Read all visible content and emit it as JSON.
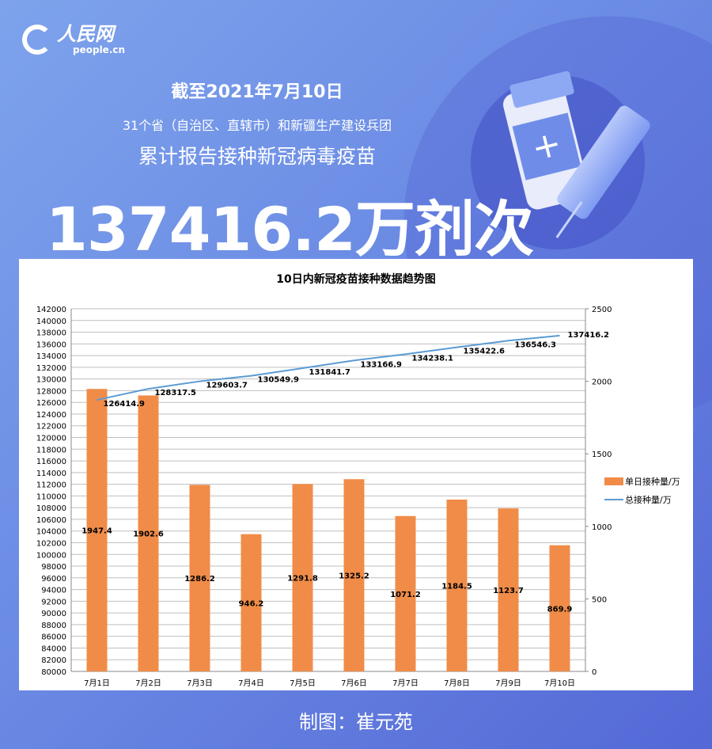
{
  "header": {
    "logo_cn": "人民网",
    "logo_en": "people.cn",
    "date_line": "截至2021年7月10日",
    "subtitle": "31个省（自治区、直辖市）和新疆生产建设兵团",
    "subtitle2": "累计报告接种新冠病毒疫苗",
    "headline": "137416.2万剂次"
  },
  "credit": "制图：崔元苑",
  "colors": {
    "bar": "#f08c48",
    "line": "#5b9bd5",
    "background": "#6b8be4"
  },
  "chart_data": {
    "type": "bar+line",
    "title": "10日内新冠疫苗接种数据趋势图",
    "categories": [
      "7月1日",
      "7月2日",
      "7月3日",
      "7月4日",
      "7月5日",
      "7月6日",
      "7月7日",
      "7月8日",
      "7月9日",
      "7月10日"
    ],
    "series": [
      {
        "name": "单日接种量/万",
        "type": "bar",
        "axis": "right",
        "values": [
          1947.4,
          1902.6,
          1286.2,
          946.2,
          1291.8,
          1325.2,
          1071.2,
          1184.5,
          1123.7,
          869.9
        ]
      },
      {
        "name": "总接种量/万",
        "type": "line",
        "axis": "left",
        "values": [
          126414.9,
          128317.5,
          129603.7,
          130549.9,
          131841.7,
          133166.9,
          134238.1,
          135422.6,
          136546.3,
          137416.2
        ]
      }
    ],
    "left_axis": {
      "range": [
        80000,
        142000
      ],
      "step": 2000
    },
    "right_axis": {
      "range": [
        0,
        2500
      ],
      "step": 500
    },
    "grid": true,
    "legend_placement": "right"
  }
}
